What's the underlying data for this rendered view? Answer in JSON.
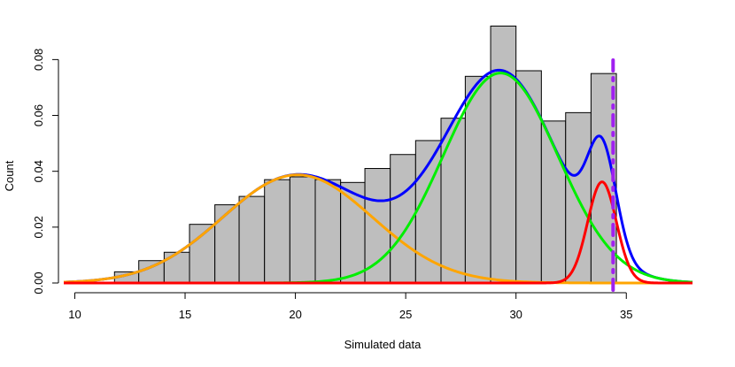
{
  "chart_data": {
    "type": "bar",
    "xlabel": "Simulated data",
    "ylabel": "Count",
    "xlim": [
      9.5,
      38
    ],
    "ylim": [
      0,
      0.095
    ],
    "x_ticks": [
      10,
      15,
      20,
      25,
      30,
      35
    ],
    "y_ticks": [
      0.0,
      0.02,
      0.04,
      0.06,
      0.08
    ],
    "y_tick_labels": [
      "0.00",
      "0.02",
      "0.04",
      "0.06",
      "0.08"
    ],
    "histogram": {
      "bin_edges": [
        11.8,
        12.9,
        14.05,
        15.2,
        16.35,
        17.45,
        18.6,
        19.75,
        20.9,
        22.05,
        23.15,
        24.3,
        25.45,
        26.6,
        27.7,
        28.85,
        30.0,
        31.15,
        32.25,
        33.4,
        34.55
      ],
      "values": [
        0.004,
        0.008,
        0.011,
        0.021,
        0.028,
        0.031,
        0.037,
        0.038,
        0.037,
        0.036,
        0.041,
        0.046,
        0.051,
        0.059,
        0.074,
        0.092,
        0.076,
        0.058,
        0.061,
        0.075
      ],
      "fill_color": "#bebebe"
    },
    "density_curves": [
      {
        "color": "#ffa500",
        "component": "normal",
        "mean": 20.1,
        "sd": 3.4,
        "weight": 0.33
      },
      {
        "color": "#00ee00",
        "component": "normal",
        "mean": 29.3,
        "sd": 2.6,
        "weight": 0.49
      },
      {
        "color": "#ff0000",
        "component": "normal",
        "mean": 33.9,
        "sd": 0.65,
        "weight": 0.059
      },
      {
        "color": "#0000ff",
        "component": "mixture_total"
      }
    ],
    "vertical_line": {
      "x": 34.4,
      "color": "#a020f0",
      "style": "dash-dot"
    }
  }
}
